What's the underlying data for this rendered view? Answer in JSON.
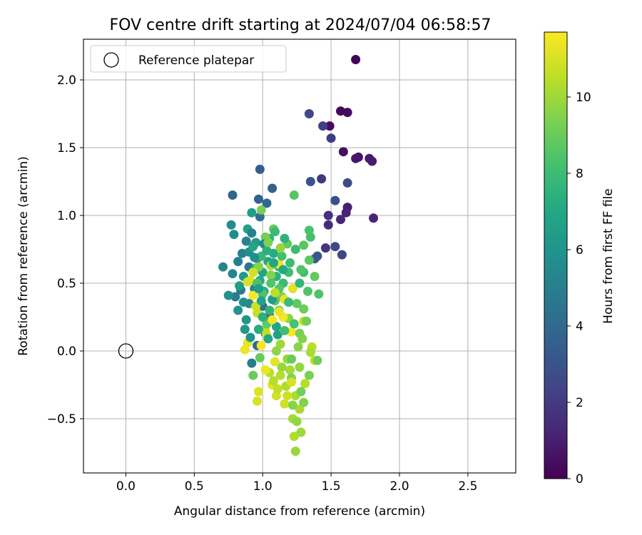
{
  "chart_data": {
    "type": "scatter",
    "title": "FOV centre drift starting at 2024/07/04 06:58:57",
    "xlabel": "Angular distance from reference (arcmin)",
    "ylabel": "Rotation from reference (arcmin)",
    "xlim": [
      -0.31,
      2.85
    ],
    "ylim": [
      -0.9,
      2.3
    ],
    "x_ticks": [
      0.0,
      0.5,
      1.0,
      1.5,
      2.0,
      2.5
    ],
    "x_tick_labels": [
      "0.0",
      "0.5",
      "1.0",
      "1.5",
      "2.0",
      "2.5"
    ],
    "y_ticks": [
      -0.5,
      0.0,
      0.5,
      1.0,
      1.5,
      2.0
    ],
    "y_tick_labels": [
      "−0.5",
      "0.0",
      "0.5",
      "1.0",
      "1.5",
      "2.0"
    ],
    "grid": true,
    "legend": {
      "position": "upper-left",
      "entries": [
        {
          "label": "Reference platepar",
          "marker": "open-circle"
        }
      ]
    },
    "reference_point": {
      "x": 0.0,
      "y": 0.0
    },
    "colorbar": {
      "label": "Hours from first FF file",
      "colormap": "viridis",
      "range": [
        0,
        11.7
      ],
      "ticks": [
        0,
        2,
        4,
        6,
        8,
        10
      ],
      "tick_labels": [
        "0",
        "2",
        "4",
        "6",
        "8",
        "10"
      ]
    },
    "points": [
      {
        "x": 1.68,
        "y": 2.15,
        "t": 0.05
      },
      {
        "x": 1.57,
        "y": 1.77,
        "t": 0.2
      },
      {
        "x": 1.62,
        "y": 1.76,
        "t": 0.3
      },
      {
        "x": 1.49,
        "y": 1.66,
        "t": 0.4
      },
      {
        "x": 1.59,
        "y": 1.47,
        "t": 0.5
      },
      {
        "x": 1.7,
        "y": 1.43,
        "t": 0.6
      },
      {
        "x": 1.68,
        "y": 1.42,
        "t": 0.7
      },
      {
        "x": 1.78,
        "y": 1.42,
        "t": 0.8
      },
      {
        "x": 1.8,
        "y": 1.4,
        "t": 0.9
      },
      {
        "x": 1.62,
        "y": 1.06,
        "t": 1.0
      },
      {
        "x": 1.61,
        "y": 1.02,
        "t": 1.1
      },
      {
        "x": 1.81,
        "y": 0.98,
        "t": 1.2
      },
      {
        "x": 1.57,
        "y": 0.97,
        "t": 1.3
      },
      {
        "x": 1.48,
        "y": 0.93,
        "t": 1.5
      },
      {
        "x": 1.48,
        "y": 1.0,
        "t": 1.7
      },
      {
        "x": 1.46,
        "y": 0.76,
        "t": 1.8
      },
      {
        "x": 1.43,
        "y": 1.27,
        "t": 1.9
      },
      {
        "x": 1.5,
        "y": 1.57,
        "t": 2.0
      },
      {
        "x": 1.44,
        "y": 1.66,
        "t": 2.2
      },
      {
        "x": 1.34,
        "y": 1.75,
        "t": 2.5
      },
      {
        "x": 1.58,
        "y": 0.71,
        "t": 2.4
      },
      {
        "x": 1.53,
        "y": 0.77,
        "t": 2.6
      },
      {
        "x": 1.62,
        "y": 1.24,
        "t": 2.7
      },
      {
        "x": 1.53,
        "y": 1.11,
        "t": 2.9
      },
      {
        "x": 1.35,
        "y": 1.25,
        "t": 3.0
      },
      {
        "x": 1.4,
        "y": 0.7,
        "t": 3.2
      },
      {
        "x": 1.38,
        "y": 0.68,
        "t": 3.3
      },
      {
        "x": 0.98,
        "y": 1.34,
        "t": 3.4
      },
      {
        "x": 1.07,
        "y": 1.2,
        "t": 3.5
      },
      {
        "x": 0.97,
        "y": 1.12,
        "t": 3.7
      },
      {
        "x": 0.78,
        "y": 1.15,
        "t": 3.9
      },
      {
        "x": 1.03,
        "y": 1.09,
        "t": 4.0
      },
      {
        "x": 0.98,
        "y": 0.99,
        "t": 4.2
      },
      {
        "x": 0.96,
        "y": 0.04,
        "t": 4.0
      },
      {
        "x": 1.02,
        "y": 0.13,
        "t": 4.1
      },
      {
        "x": 1.05,
        "y": 0.26,
        "t": 4.3
      },
      {
        "x": 1.0,
        "y": 0.33,
        "t": 4.4
      },
      {
        "x": 0.93,
        "y": 0.59,
        "t": 4.5
      },
      {
        "x": 0.9,
        "y": 0.62,
        "t": 4.6
      },
      {
        "x": 0.84,
        "y": 0.45,
        "t": 4.7
      },
      {
        "x": 0.8,
        "y": 0.4,
        "t": 4.8
      },
      {
        "x": 0.92,
        "y": -0.09,
        "t": 4.9
      },
      {
        "x": 0.82,
        "y": 0.66,
        "t": 5.0
      },
      {
        "x": 0.85,
        "y": 0.72,
        "t": 5.1
      },
      {
        "x": 0.94,
        "y": 0.46,
        "t": 5.2
      },
      {
        "x": 0.71,
        "y": 0.62,
        "t": 5.3
      },
      {
        "x": 0.78,
        "y": 0.57,
        "t": 5.4
      },
      {
        "x": 0.9,
        "y": 0.35,
        "t": 5.5
      },
      {
        "x": 0.77,
        "y": 0.93,
        "t": 5.6
      },
      {
        "x": 0.79,
        "y": 0.86,
        "t": 5.7
      },
      {
        "x": 0.9,
        "y": 0.73,
        "t": 5.8
      },
      {
        "x": 0.75,
        "y": 0.41,
        "t": 5.9
      },
      {
        "x": 0.82,
        "y": 0.3,
        "t": 6.0
      },
      {
        "x": 0.88,
        "y": 0.23,
        "t": 6.1
      },
      {
        "x": 0.86,
        "y": 0.55,
        "t": 6.2
      },
      {
        "x": 0.95,
        "y": 0.8,
        "t": 6.3
      },
      {
        "x": 0.92,
        "y": 1.02,
        "t": 6.4
      },
      {
        "x": 0.83,
        "y": 0.48,
        "t": 6.5
      },
      {
        "x": 0.96,
        "y": 0.68,
        "t": 6.6
      },
      {
        "x": 0.89,
        "y": 0.9,
        "t": 6.7
      },
      {
        "x": 1.0,
        "y": 0.58,
        "t": 6.8
      },
      {
        "x": 0.93,
        "y": 0.77,
        "t": 6.9
      },
      {
        "x": 1.04,
        "y": 0.66,
        "t": 7.0
      },
      {
        "x": 0.98,
        "y": 0.52,
        "t": 7.1
      },
      {
        "x": 1.08,
        "y": 0.72,
        "t": 7.2
      },
      {
        "x": 1.01,
        "y": 0.44,
        "t": 7.3
      },
      {
        "x": 0.95,
        "y": 0.61,
        "t": 7.4
      },
      {
        "x": 1.1,
        "y": 0.55,
        "t": 7.5
      },
      {
        "x": 1.05,
        "y": 0.83,
        "t": 7.6
      },
      {
        "x": 1.12,
        "y": 0.62,
        "t": 7.7
      },
      {
        "x": 0.99,
        "y": 0.7,
        "t": 7.8
      },
      {
        "x": 1.15,
        "y": 0.5,
        "t": 7.9
      },
      {
        "x": 1.2,
        "y": 0.65,
        "t": 8.0
      },
      {
        "x": 1.3,
        "y": 0.58,
        "t": 8.1
      },
      {
        "x": 1.35,
        "y": 0.84,
        "t": 8.2
      },
      {
        "x": 1.34,
        "y": 0.89,
        "t": 8.3
      },
      {
        "x": 1.41,
        "y": 0.42,
        "t": 8.4
      },
      {
        "x": 1.33,
        "y": 0.44,
        "t": 8.5
      },
      {
        "x": 1.23,
        "y": 1.15,
        "t": 8.6
      },
      {
        "x": 1.3,
        "y": 0.78,
        "t": 8.7
      },
      {
        "x": 1.25,
        "y": 0.35,
        "t": 8.8
      },
      {
        "x": 1.18,
        "y": 0.79,
        "t": 8.9
      },
      {
        "x": 1.08,
        "y": 0.9,
        "t": 9.0
      },
      {
        "x": 1.12,
        "y": 0.3,
        "t": 9.1
      },
      {
        "x": 1.02,
        "y": 0.84,
        "t": 9.2
      },
      {
        "x": 0.99,
        "y": 1.04,
        "t": 9.3
      },
      {
        "x": 1.14,
        "y": 0.4,
        "t": 9.4
      },
      {
        "x": 1.06,
        "y": 0.56,
        "t": 9.5
      },
      {
        "x": 0.97,
        "y": 0.62,
        "t": 9.6
      },
      {
        "x": 1.19,
        "y": 0.24,
        "t": 9.7
      },
      {
        "x": 1.27,
        "y": -0.12,
        "t": 9.8
      },
      {
        "x": 1.24,
        "y": -0.74,
        "t": 9.9
      },
      {
        "x": 1.28,
        "y": -0.6,
        "t": 10.0
      },
      {
        "x": 1.22,
        "y": -0.5,
        "t": 10.1
      },
      {
        "x": 1.27,
        "y": -0.43,
        "t": 10.2
      },
      {
        "x": 1.23,
        "y": -0.63,
        "t": 10.3
      },
      {
        "x": 1.31,
        "y": -0.24,
        "t": 10.4
      },
      {
        "x": 1.36,
        "y": 0.03,
        "t": 10.5
      },
      {
        "x": 1.38,
        "y": -0.07,
        "t": 10.6
      },
      {
        "x": 1.3,
        "y": 0.22,
        "t": 10.7
      },
      {
        "x": 1.16,
        "y": -0.39,
        "t": 10.8
      },
      {
        "x": 1.1,
        "y": -0.33,
        "t": 10.9
      },
      {
        "x": 0.96,
        "y": -0.37,
        "t": 11.0
      },
      {
        "x": 0.97,
        "y": -0.3,
        "t": 11.1
      },
      {
        "x": 1.07,
        "y": -0.25,
        "t": 11.2
      },
      {
        "x": 0.89,
        "y": 0.06,
        "t": 11.3
      },
      {
        "x": 0.87,
        "y": 0.01,
        "t": 11.4
      },
      {
        "x": 1.03,
        "y": 0.12,
        "t": 11.5
      },
      {
        "x": 0.93,
        "y": 0.41,
        "t": 11.6
      },
      {
        "x": 1.21,
        "y": 0.14,
        "t": 11.6
      },
      {
        "x": 1.15,
        "y": 0.25,
        "t": 11.5
      },
      {
        "x": 1.12,
        "y": 0.64,
        "t": 11.4
      },
      {
        "x": 1.16,
        "y": 0.38,
        "t": 11.3
      },
      {
        "x": 1.22,
        "y": 0.46,
        "t": 11.2
      },
      {
        "x": 0.91,
        "y": 0.52,
        "t": 11.1
      },
      {
        "x": 0.89,
        "y": 0.51,
        "t": 11.0
      },
      {
        "x": 0.93,
        "y": 0.58,
        "t": 10.9
      },
      {
        "x": 0.95,
        "y": 0.33,
        "t": 10.8
      },
      {
        "x": 0.96,
        "y": 0.28,
        "t": 10.7
      },
      {
        "x": 1.02,
        "y": 0.15,
        "t": 10.6
      },
      {
        "x": 1.05,
        "y": -0.16,
        "t": 10.5
      },
      {
        "x": 1.08,
        "y": -0.22,
        "t": 10.4
      },
      {
        "x": 1.17,
        "y": -0.26,
        "t": 10.3
      },
      {
        "x": 1.24,
        "y": -0.33,
        "t": 10.2
      },
      {
        "x": 1.2,
        "y": -0.14,
        "t": 10.1
      },
      {
        "x": 1.13,
        "y": 0.05,
        "t": 10.0
      },
      {
        "x": 1.18,
        "y": -0.06,
        "t": 9.9
      },
      {
        "x": 1.14,
        "y": -0.12,
        "t": 9.8
      },
      {
        "x": 1.1,
        "y": 0.0,
        "t": 9.7
      },
      {
        "x": 1.26,
        "y": 0.03,
        "t": 9.6
      },
      {
        "x": 1.29,
        "y": 0.09,
        "t": 9.5
      },
      {
        "x": 1.21,
        "y": -0.2,
        "t": 9.4
      },
      {
        "x": 1.34,
        "y": -0.18,
        "t": 9.3
      },
      {
        "x": 1.32,
        "y": 0.22,
        "t": 9.2
      },
      {
        "x": 1.4,
        "y": -0.07,
        "t": 9.1
      },
      {
        "x": 0.93,
        "y": -0.18,
        "t": 9.0
      },
      {
        "x": 0.98,
        "y": -0.05,
        "t": 8.9
      },
      {
        "x": 1.03,
        "y": 0.2,
        "t": 8.8
      },
      {
        "x": 1.09,
        "y": 0.37,
        "t": 8.7
      },
      {
        "x": 1.12,
        "y": 0.46,
        "t": 8.6
      },
      {
        "x": 1.06,
        "y": 0.5,
        "t": 8.5
      },
      {
        "x": 1.0,
        "y": 0.42,
        "t": 8.4
      },
      {
        "x": 0.96,
        "y": 0.5,
        "t": 8.3
      },
      {
        "x": 1.14,
        "y": 0.7,
        "t": 8.2
      },
      {
        "x": 1.19,
        "y": 0.58,
        "t": 8.1
      },
      {
        "x": 1.24,
        "y": 0.75,
        "t": 8.0
      },
      {
        "x": 1.09,
        "y": 0.88,
        "t": 7.9
      },
      {
        "x": 1.22,
        "y": -0.4,
        "t": 9.6
      },
      {
        "x": 1.25,
        "y": -0.52,
        "t": 9.8
      },
      {
        "x": 1.3,
        "y": -0.38,
        "t": 9.5
      },
      {
        "x": 1.28,
        "y": -0.3,
        "t": 9.2
      },
      {
        "x": 1.21,
        "y": -0.06,
        "t": 9.0
      },
      {
        "x": 1.05,
        "y": 0.3,
        "t": 7.6
      },
      {
        "x": 1.0,
        "y": 0.25,
        "t": 7.4
      },
      {
        "x": 0.97,
        "y": 0.16,
        "t": 7.2
      },
      {
        "x": 1.04,
        "y": 0.09,
        "t": 7.0
      },
      {
        "x": 1.1,
        "y": 0.18,
        "t": 6.8
      },
      {
        "x": 1.11,
        "y": 0.12,
        "t": 6.6
      },
      {
        "x": 1.07,
        "y": 0.38,
        "t": 6.4
      },
      {
        "x": 0.87,
        "y": 0.16,
        "t": 6.2
      },
      {
        "x": 0.91,
        "y": 0.1,
        "t": 6.0
      },
      {
        "x": 0.86,
        "y": 0.36,
        "t": 5.8
      },
      {
        "x": 0.94,
        "y": 0.69,
        "t": 5.6
      },
      {
        "x": 1.01,
        "y": 0.79,
        "t": 5.4
      },
      {
        "x": 0.88,
        "y": 0.81,
        "t": 5.2
      },
      {
        "x": 0.92,
        "y": 0.87,
        "t": 5.0
      },
      {
        "x": 1.03,
        "y": 0.74,
        "t": 7.3
      },
      {
        "x": 1.16,
        "y": 0.83,
        "t": 7.5
      },
      {
        "x": 1.27,
        "y": 0.5,
        "t": 7.7
      },
      {
        "x": 1.19,
        "y": 0.36,
        "t": 7.9
      },
      {
        "x": 1.16,
        "y": 0.15,
        "t": 8.1
      },
      {
        "x": 1.23,
        "y": 0.2,
        "t": 8.3
      },
      {
        "x": 1.28,
        "y": 0.6,
        "t": 8.5
      },
      {
        "x": 1.34,
        "y": 0.67,
        "t": 8.7
      },
      {
        "x": 1.38,
        "y": 0.55,
        "t": 8.9
      },
      {
        "x": 1.3,
        "y": 0.31,
        "t": 9.1
      },
      {
        "x": 1.27,
        "y": 0.13,
        "t": 9.3
      },
      {
        "x": 1.35,
        "y": -0.01,
        "t": 10.2
      },
      {
        "x": 1.13,
        "y": -0.18,
        "t": 10.4
      },
      {
        "x": 1.11,
        "y": -0.28,
        "t": 10.6
      },
      {
        "x": 1.18,
        "y": -0.33,
        "t": 10.8
      },
      {
        "x": 1.21,
        "y": -0.23,
        "t": 11.0
      },
      {
        "x": 1.09,
        "y": -0.08,
        "t": 11.2
      },
      {
        "x": 1.02,
        "y": -0.14,
        "t": 11.4
      },
      {
        "x": 0.99,
        "y": 0.04,
        "t": 11.6
      },
      {
        "x": 1.07,
        "y": 0.23,
        "t": 11.5
      },
      {
        "x": 1.12,
        "y": 0.29,
        "t": 11.3
      },
      {
        "x": 1.09,
        "y": 0.43,
        "t": 10.5
      },
      {
        "x": 1.06,
        "y": 0.63,
        "t": 10.2
      },
      {
        "x": 1.13,
        "y": 0.76,
        "t": 9.8
      },
      {
        "x": 1.04,
        "y": 0.8,
        "t": 9.4
      },
      {
        "x": 0.97,
        "y": 0.46,
        "t": 6.5
      },
      {
        "x": 0.99,
        "y": 0.37,
        "t": 6.7
      },
      {
        "x": 1.08,
        "y": 0.65,
        "t": 6.9
      },
      {
        "x": 1.15,
        "y": 0.6,
        "t": 7.1
      }
    ]
  }
}
